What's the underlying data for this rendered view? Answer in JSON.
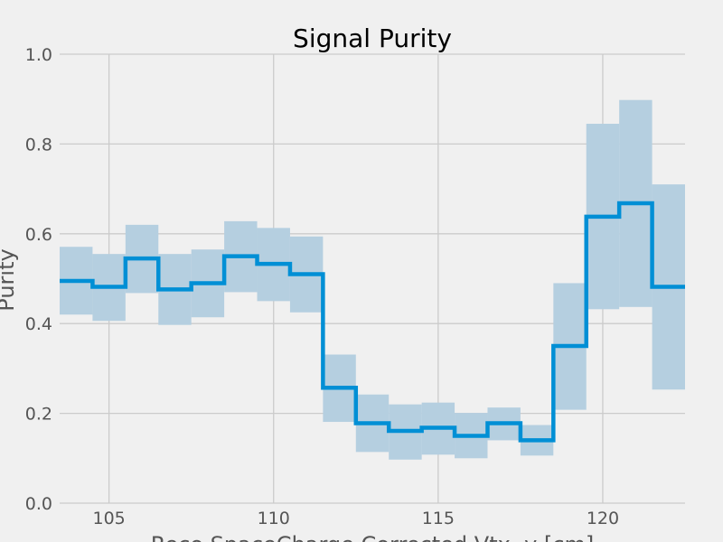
{
  "chart_data": {
    "type": "line",
    "step": true,
    "title": "Signal Purity",
    "xlabel": "Reco SpaceCharge Corrected Vtx, y [cm]",
    "ylabel": "Purity",
    "xlim": [
      103.5,
      122.5
    ],
    "ylim": [
      0.0,
      1.0
    ],
    "xticks": [
      105,
      110,
      115,
      120
    ],
    "yticks": [
      0.0,
      0.2,
      0.4,
      0.6,
      0.8,
      1.0
    ],
    "xtick_labels": [
      "105",
      "110",
      "115",
      "120"
    ],
    "ytick_labels": [
      "0.0",
      "0.2",
      "0.4",
      "0.6",
      "0.8",
      "1.0"
    ],
    "grid": true,
    "line_color": "#008fd5",
    "band_color": "#b5cfe0",
    "bin_edges": [
      103.5,
      104.5,
      105.5,
      106.5,
      107.5,
      108.5,
      109.5,
      110.5,
      111.5,
      112.5,
      113.5,
      114.5,
      115.5,
      116.5,
      117.5,
      118.5,
      119.5,
      120.5,
      121.5,
      122.5
    ],
    "values": [
      0.495,
      0.482,
      0.545,
      0.476,
      0.49,
      0.55,
      0.533,
      0.51,
      0.257,
      0.178,
      0.161,
      0.168,
      0.15,
      0.178,
      0.14,
      0.35,
      0.638,
      0.668,
      0.482
    ],
    "band_low": [
      0.42,
      0.406,
      0.468,
      0.397,
      0.414,
      0.47,
      0.45,
      0.425,
      0.181,
      0.114,
      0.097,
      0.108,
      0.1,
      0.14,
      0.106,
      0.208,
      0.432,
      0.437,
      0.253
    ],
    "band_high": [
      0.571,
      0.555,
      0.62,
      0.555,
      0.565,
      0.628,
      0.613,
      0.594,
      0.331,
      0.242,
      0.22,
      0.224,
      0.201,
      0.213,
      0.174,
      0.49,
      0.845,
      0.898,
      0.71
    ]
  }
}
